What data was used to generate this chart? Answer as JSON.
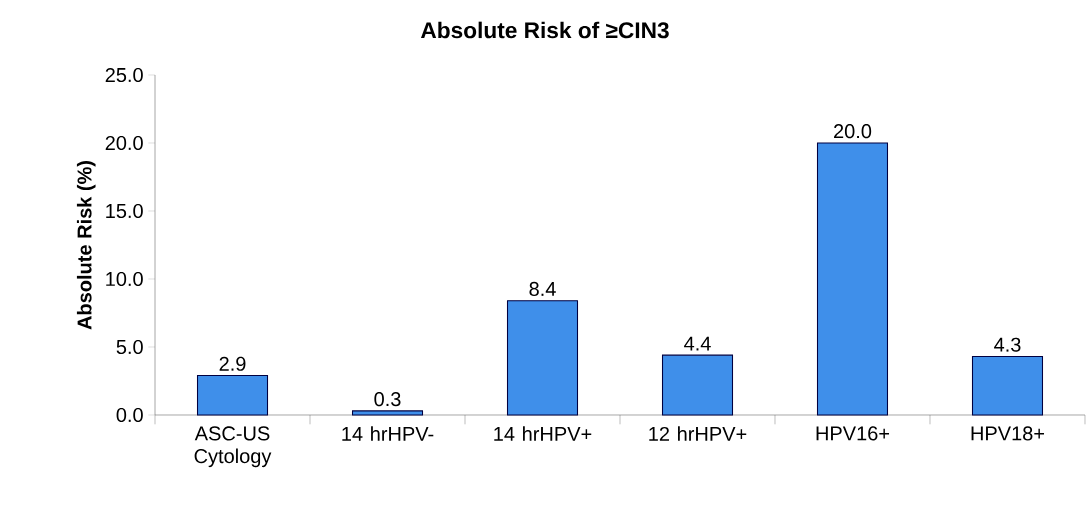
{
  "chart_data": {
    "type": "bar",
    "title": "Absolute Risk of ≥CIN3",
    "ylabel": "Absolute Risk (%)",
    "categories": [
      "ASC-US Cytology",
      "14 hrHPV-",
      "14 hrHPV+",
      "12 hrHPV+",
      "HPV16+",
      "HPV18+"
    ],
    "values": [
      2.9,
      0.3,
      8.4,
      4.4,
      20.0,
      4.3
    ],
    "value_labels": [
      "2.9",
      "0.3",
      "8.4",
      "4.4",
      "20.0",
      "4.3"
    ],
    "color": "#3f8fea",
    "ylim": [
      0,
      25
    ],
    "yticks": [
      {
        "value": 0,
        "label": "0.0"
      },
      {
        "value": 5,
        "label": "5.0"
      },
      {
        "value": 10,
        "label": "10.0"
      },
      {
        "value": 15,
        "label": "15.0"
      },
      {
        "value": 20,
        "label": "20.0"
      },
      {
        "value": 25,
        "label": "25.0"
      }
    ],
    "grid": false
  }
}
